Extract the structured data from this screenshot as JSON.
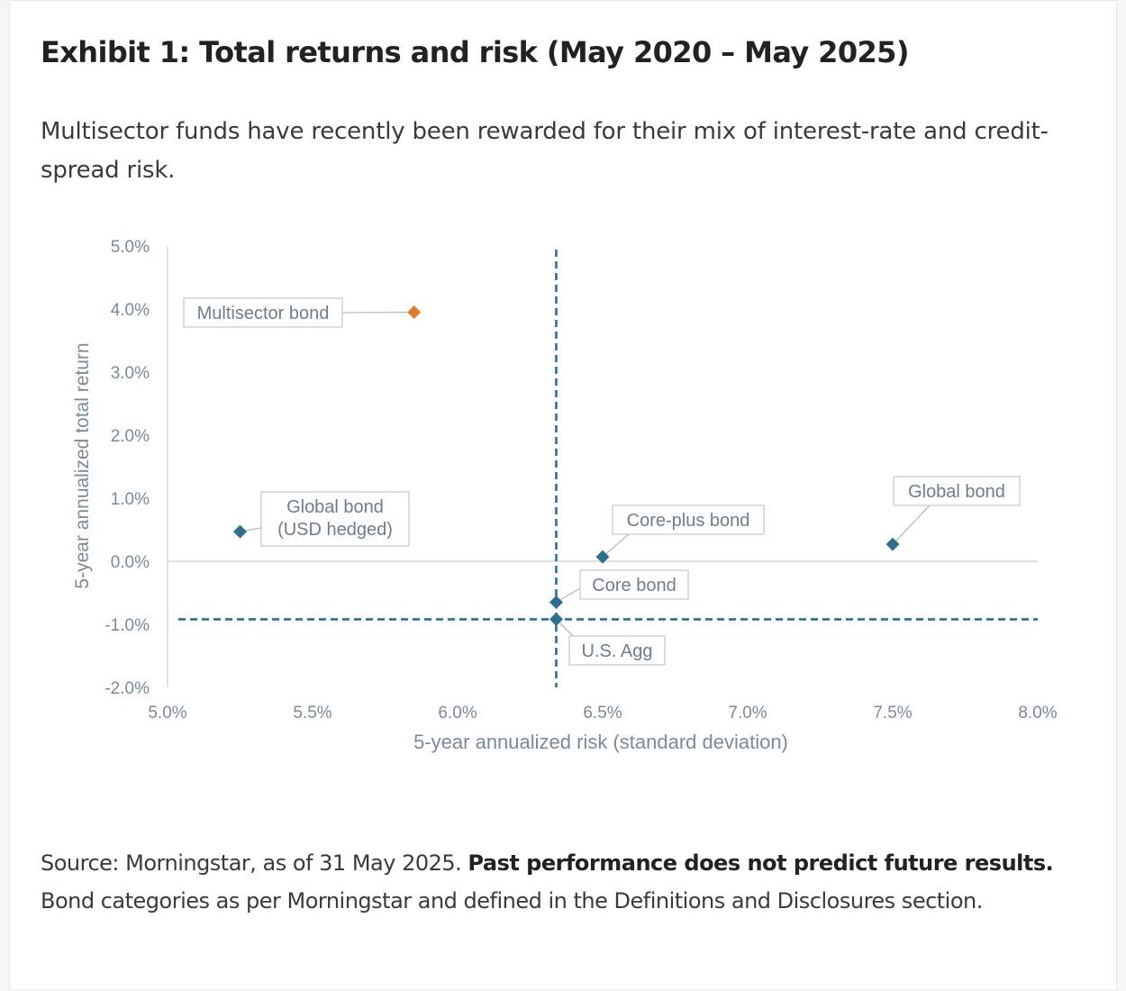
{
  "header": {
    "title": "Exhibit 1: Total returns and risk (May 2020 – May 2025)",
    "subtitle": "Multisector funds have recently been rewarded for their mix of interest-rate and credit-spread risk."
  },
  "footer": {
    "source_text": "Source: Morningstar, as of 31 May 2025.",
    "disclaimer_bold": "Past performance does not predict future results.",
    "note": "Bond categories as per Morningstar and defined in the Definitions and Disclosures section."
  },
  "colors": {
    "primary_marker": "#2e6f8e",
    "highlight_marker": "#e07b2b",
    "reference_line": "#2e6f8e",
    "axis_text": "#7a8a99",
    "label_border": "#c6c6c6",
    "label_text": "#6d7d8b"
  },
  "chart_data": {
    "type": "scatter",
    "xlabel": "5-year annualized risk (standard deviation)",
    "ylabel": "5-year annualized total return",
    "xlim": [
      5.0,
      8.0
    ],
    "ylim": [
      -2.0,
      5.0
    ],
    "x_ticks": [
      "5.0%",
      "5.5%",
      "6.0%",
      "6.5%",
      "7.0%",
      "7.5%",
      "8.0%"
    ],
    "y_ticks": [
      "5.0%",
      "4.0%",
      "3.0%",
      "2.0%",
      "1.0%",
      "0.0%",
      "-1.0%",
      "-2.0%"
    ],
    "grid": false,
    "points": [
      {
        "label": "Multisector bond",
        "x": 5.85,
        "y": 3.95,
        "highlight": true
      },
      {
        "label": "Global bond (USD hedged)",
        "x": 5.25,
        "y": 0.47,
        "highlight": false
      },
      {
        "label": "Core-plus bond",
        "x": 6.5,
        "y": 0.07,
        "highlight": false
      },
      {
        "label": "Global bond",
        "x": 7.5,
        "y": 0.27,
        "highlight": false
      },
      {
        "label": "Core bond",
        "x": 6.34,
        "y": -0.65,
        "highlight": false
      },
      {
        "label": "U.S. Agg",
        "x": 6.34,
        "y": -0.92,
        "highlight": false
      }
    ],
    "reference_lines": {
      "vertical_x": 6.34,
      "horizontal_y": -0.92
    }
  }
}
